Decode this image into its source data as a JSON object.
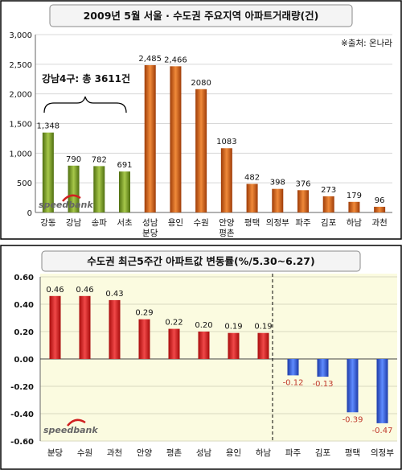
{
  "chart_data": [
    {
      "type": "bar",
      "title": "2009년 5월 서울 · 수도권 주요지역 아파트거래량(건)",
      "source": "※출처: 온나라",
      "annotation": "강남4구: 총 3611건",
      "watermark": "speedbank",
      "ylim": [
        0,
        3000
      ],
      "yticks": [
        "0",
        "500",
        "1,000",
        "1,500",
        "2,000",
        "2,500",
        "3,000"
      ],
      "categories": [
        {
          "lines": [
            "강동"
          ]
        },
        {
          "lines": [
            "강남"
          ]
        },
        {
          "lines": [
            "송파"
          ]
        },
        {
          "lines": [
            "서초"
          ]
        },
        {
          "lines": [
            "성남",
            "분당"
          ]
        },
        {
          "lines": [
            "용인"
          ]
        },
        {
          "lines": [
            "수원"
          ]
        },
        {
          "lines": [
            "안양",
            "평촌"
          ]
        },
        {
          "lines": [
            "평택"
          ]
        },
        {
          "lines": [
            "의정부"
          ]
        },
        {
          "lines": [
            "파주"
          ]
        },
        {
          "lines": [
            "김포"
          ]
        },
        {
          "lines": [
            "하남"
          ]
        },
        {
          "lines": [
            "과천"
          ]
        }
      ],
      "values": [
        1348,
        790,
        782,
        691,
        2485,
        2466,
        2080,
        1083,
        482,
        398,
        376,
        273,
        179,
        96
      ],
      "value_labels": [
        "1,348",
        "790",
        "782",
        "691",
        "2,485",
        "2,466",
        "2080",
        "1083",
        "482",
        "398",
        "376",
        "273",
        "179",
        "96"
      ],
      "groups": [
        "green",
        "green",
        "green",
        "green",
        "orange",
        "orange",
        "orange",
        "orange",
        "orange",
        "orange",
        "orange",
        "orange",
        "orange",
        "orange"
      ],
      "colors": {
        "green": "#7fa12a",
        "orange": "#d4621a"
      }
    },
    {
      "type": "bar",
      "title": "수도권 최근5주간 아파트값 변동률(%/5.30~6.27)",
      "watermark": "speedbank",
      "ylim": [
        -0.6,
        0.6
      ],
      "yticks": [
        "-0.60",
        "-0.40",
        "-0.20",
        "0.00",
        "0.20",
        "0.40",
        "0.60"
      ],
      "categories": [
        "분당",
        "수원",
        "과천",
        "안양",
        "평촌",
        "성남",
        "용인",
        "하남",
        "파주",
        "김포",
        "평택",
        "의정부"
      ],
      "values": [
        0.46,
        0.46,
        0.43,
        0.29,
        0.22,
        0.2,
        0.19,
        0.19,
        -0.12,
        -0.13,
        -0.39,
        -0.47
      ],
      "value_labels": [
        "0.46",
        "0.46",
        "0.43",
        "0.29",
        "0.22",
        "0.20",
        "0.19",
        "0.19",
        "-0.12",
        "-0.13",
        "-0.39",
        "-0.47"
      ],
      "colors": {
        "positive": "#d81e1e",
        "negative": "#2f5ee0",
        "negative_label": "#c0392b",
        "plot_bg": "#fbfbe0"
      }
    }
  ]
}
